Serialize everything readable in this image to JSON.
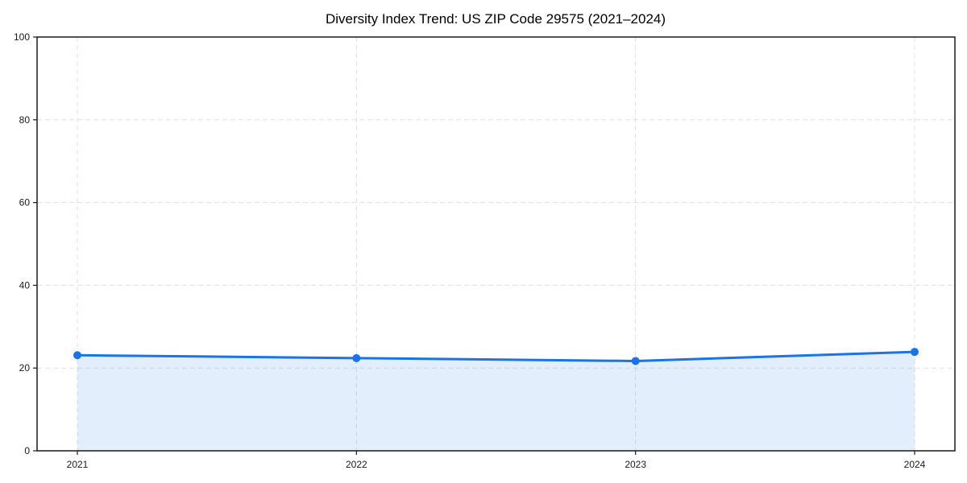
{
  "chart_data": {
    "type": "line",
    "title": "Diversity Index Trend: US ZIP Code 29575 (2021–2024)",
    "categories": [
      "2021",
      "2022",
      "2023",
      "2024"
    ],
    "values": [
      23.1,
      22.4,
      21.7,
      23.9
    ],
    "series_count": 1,
    "xlabel": "",
    "ylabel": "",
    "ylim": [
      0,
      100
    ],
    "yticks": [
      0,
      20,
      40,
      60,
      80,
      100
    ],
    "ytick_labels": [
      "0",
      "20",
      "40",
      "60",
      "80",
      "100"
    ],
    "grid": true,
    "grid_style": "dashed",
    "grid_axes": "both",
    "legend_position": "none",
    "marker": "circle",
    "area_fill": true
  },
  "colors": {
    "line": "#1a73e8",
    "marker": "#1a73e8",
    "area_fill": "#1a73e8",
    "area_fill_opacity": "0.12",
    "grid": "#e0e0e0",
    "axis": "#1a1a1a",
    "tick_label": "#1a1a1a",
    "title": "#000000",
    "background": "#ffffff"
  }
}
